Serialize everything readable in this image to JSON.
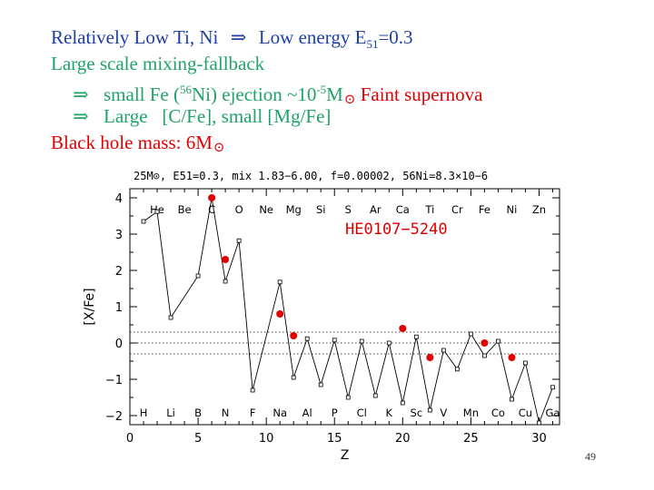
{
  "slide": {
    "line1_a": "Relatively Low Ti, Ni",
    "arrow": "⇒",
    "line1_b": "Low energy E",
    "line1_sub": "51",
    "line1_c": "=0.3",
    "line2": "Large scale mixing-fallback",
    "line3_a": "small Fe (",
    "line3_sup1": "56",
    "line3_b": "Ni) ejection ~10",
    "line3_sup2": "-5",
    "line3_c": "M",
    "sun": "⊙",
    "line3_red": "Faint supernova",
    "line4": "Large   [C/Fe], small [Mg/Fe]",
    "line5": "Black hole mass: 6M",
    "page_number": "49"
  },
  "chart_data": {
    "type": "scatter",
    "title": "25M⊙, E51=0.3, mix 1.83−6.00, f=0.00002, 56Ni=8.3×10−6",
    "annotation": "HE0107−5240",
    "xlabel": "Z",
    "ylabel": "[X/Fe]",
    "xlim": [
      0,
      31.5
    ],
    "ylim": [
      -2.25,
      4.25
    ],
    "xticks": [
      0,
      5,
      10,
      15,
      20,
      25,
      30
    ],
    "yticks": [
      -2,
      -1,
      0,
      1,
      2,
      3,
      4
    ],
    "reference_lines": [
      -0.3,
      0,
      0.3
    ],
    "elements_top": [
      {
        "z": 2,
        "label": "He"
      },
      {
        "z": 4,
        "label": "Be"
      },
      {
        "z": 6,
        "label": "C"
      },
      {
        "z": 8,
        "label": "O"
      },
      {
        "z": 10,
        "label": "Ne"
      },
      {
        "z": 12,
        "label": "Mg"
      },
      {
        "z": 14,
        "label": "Si"
      },
      {
        "z": 16,
        "label": "S"
      },
      {
        "z": 18,
        "label": "Ar"
      },
      {
        "z": 20,
        "label": "Ca"
      },
      {
        "z": 22,
        "label": "Ti"
      },
      {
        "z": 24,
        "label": "Cr"
      },
      {
        "z": 26,
        "label": "Fe"
      },
      {
        "z": 28,
        "label": "Ni"
      },
      {
        "z": 30,
        "label": "Zn"
      }
    ],
    "elements_bottom": [
      {
        "z": 1,
        "label": "H"
      },
      {
        "z": 3,
        "label": "Li"
      },
      {
        "z": 5,
        "label": "B"
      },
      {
        "z": 7,
        "label": "N"
      },
      {
        "z": 9,
        "label": "F"
      },
      {
        "z": 11,
        "label": "Na"
      },
      {
        "z": 13,
        "label": "Al"
      },
      {
        "z": 15,
        "label": "P"
      },
      {
        "z": 17,
        "label": "Cl"
      },
      {
        "z": 19,
        "label": "K"
      },
      {
        "z": 21,
        "label": "Sc"
      },
      {
        "z": 23,
        "label": "V"
      },
      {
        "z": 25,
        "label": "Mn"
      },
      {
        "z": 27,
        "label": "Co"
      },
      {
        "z": 29,
        "label": "Cu"
      },
      {
        "z": 31,
        "label": "Ga"
      }
    ],
    "model": {
      "x": [
        1,
        2,
        3,
        5,
        6,
        7,
        8,
        9,
        11,
        12,
        13,
        14,
        15,
        16,
        17,
        18,
        19,
        20,
        21,
        22,
        23,
        24,
        25,
        26,
        27,
        28,
        29,
        30,
        31
      ],
      "y": [
        3.35,
        3.62,
        0.7,
        1.85,
        4.0,
        1.7,
        2.82,
        -1.3,
        1.68,
        -0.95,
        0.12,
        -1.15,
        0.08,
        -1.5,
        0.05,
        -1.45,
        0.0,
        -1.65,
        0.17,
        -1.85,
        -0.2,
        -0.72,
        0.25,
        -0.35,
        0.05,
        -1.55,
        -0.55,
        -2.2,
        -1.22
      ]
    },
    "observed": {
      "x": [
        6,
        7,
        11,
        12,
        20,
        22,
        26,
        28
      ],
      "y": [
        4.0,
        2.3,
        0.8,
        0.2,
        0.4,
        -0.4,
        0.0,
        -0.4
      ]
    },
    "colors": {
      "observed": "#e00000",
      "model": "#000000",
      "annotation": "#e00000"
    }
  }
}
